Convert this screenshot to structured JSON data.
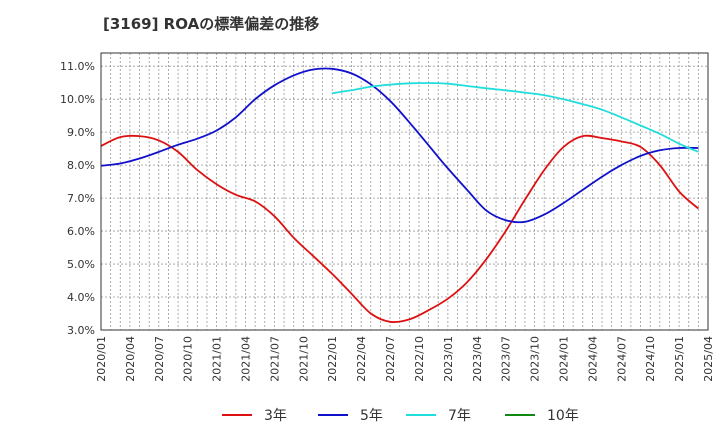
{
  "chart_data": {
    "type": "line",
    "title": "[3169]  ROAの標準偏差の推移",
    "ylim": [
      3.0,
      11.4
    ],
    "yticks": [
      "3.0%",
      "4.0%",
      "5.0%",
      "6.0%",
      "7.0%",
      "8.0%",
      "9.0%",
      "10.0%",
      "11.0%"
    ],
    "ytick_values": [
      3,
      4,
      5,
      6,
      7,
      8,
      9,
      10,
      11
    ],
    "xticks": [
      "2020/01",
      "2020/04",
      "2020/07",
      "2020/10",
      "2021/01",
      "2021/04",
      "2021/07",
      "2021/10",
      "2022/01",
      "2022/04",
      "2022/07",
      "2022/10",
      "2023/01",
      "2023/04",
      "2023/07",
      "2023/10",
      "2024/01",
      "2024/04",
      "2024/07",
      "2024/10",
      "2025/01",
      "2025/04"
    ],
    "grid": true,
    "legend_position": "bottom",
    "series": [
      {
        "name": "3年",
        "color": "#dd1111",
        "points": [
          [
            "2020/01",
            8.58
          ],
          [
            "2020/03",
            8.85
          ],
          [
            "2020/05",
            8.88
          ],
          [
            "2020/07",
            8.75
          ],
          [
            "2020/09",
            8.4
          ],
          [
            "2020/11",
            7.85
          ],
          [
            "2021/01",
            7.42
          ],
          [
            "2021/03",
            7.1
          ],
          [
            "2021/05",
            6.9
          ],
          [
            "2021/07",
            6.45
          ],
          [
            "2021/09",
            5.8
          ],
          [
            "2021/11",
            5.25
          ],
          [
            "2022/01",
            4.7
          ],
          [
            "2022/03",
            4.1
          ],
          [
            "2022/05",
            3.5
          ],
          [
            "2022/07",
            3.25
          ],
          [
            "2022/09",
            3.32
          ],
          [
            "2022/11",
            3.6
          ],
          [
            "2023/01",
            3.95
          ],
          [
            "2023/03",
            4.45
          ],
          [
            "2023/05",
            5.15
          ],
          [
            "2023/07",
            6.0
          ],
          [
            "2023/09",
            6.95
          ],
          [
            "2023/11",
            7.85
          ],
          [
            "2024/01",
            8.55
          ],
          [
            "2024/03",
            8.88
          ],
          [
            "2024/05",
            8.82
          ],
          [
            "2024/07",
            8.72
          ],
          [
            "2024/09",
            8.55
          ],
          [
            "2024/11",
            8.0
          ],
          [
            "2025/01",
            7.2
          ],
          [
            "2025/03",
            6.68
          ]
        ]
      },
      {
        "name": "5年",
        "color": "#1111cc",
        "points": [
          [
            "2020/01",
            7.98
          ],
          [
            "2020/03",
            8.05
          ],
          [
            "2020/05",
            8.2
          ],
          [
            "2020/07",
            8.4
          ],
          [
            "2020/09",
            8.62
          ],
          [
            "2020/11",
            8.8
          ],
          [
            "2021/01",
            9.05
          ],
          [
            "2021/03",
            9.45
          ],
          [
            "2021/05",
            10.0
          ],
          [
            "2021/07",
            10.42
          ],
          [
            "2021/09",
            10.72
          ],
          [
            "2021/11",
            10.9
          ],
          [
            "2022/01",
            10.92
          ],
          [
            "2022/03",
            10.78
          ],
          [
            "2022/05",
            10.45
          ],
          [
            "2022/07",
            9.95
          ],
          [
            "2022/09",
            9.3
          ],
          [
            "2022/11",
            8.6
          ],
          [
            "2023/01",
            7.9
          ],
          [
            "2023/03",
            7.25
          ],
          [
            "2023/05",
            6.62
          ],
          [
            "2023/07",
            6.33
          ],
          [
            "2023/09",
            6.28
          ],
          [
            "2023/11",
            6.5
          ],
          [
            "2024/01",
            6.85
          ],
          [
            "2024/03",
            7.25
          ],
          [
            "2024/05",
            7.65
          ],
          [
            "2024/07",
            8.0
          ],
          [
            "2024/09",
            8.28
          ],
          [
            "2024/11",
            8.45
          ],
          [
            "2025/01",
            8.52
          ],
          [
            "2025/03",
            8.52
          ]
        ]
      },
      {
        "name": "7年",
        "color": "#22dddd",
        "points": [
          [
            "2022/01",
            10.18
          ],
          [
            "2022/03",
            10.27
          ],
          [
            "2022/05",
            10.38
          ],
          [
            "2022/07",
            10.44
          ],
          [
            "2022/09",
            10.48
          ],
          [
            "2022/11",
            10.49
          ],
          [
            "2023/01",
            10.47
          ],
          [
            "2023/03",
            10.4
          ],
          [
            "2023/05",
            10.33
          ],
          [
            "2023/07",
            10.27
          ],
          [
            "2023/09",
            10.2
          ],
          [
            "2023/11",
            10.12
          ],
          [
            "2024/01",
            10.0
          ],
          [
            "2024/03",
            9.85
          ],
          [
            "2024/05",
            9.68
          ],
          [
            "2024/07",
            9.45
          ],
          [
            "2024/09",
            9.2
          ],
          [
            "2024/11",
            8.95
          ],
          [
            "2025/01",
            8.65
          ],
          [
            "2025/03",
            8.4
          ]
        ]
      },
      {
        "name": "10年",
        "color": "#118811",
        "points": []
      }
    ]
  }
}
